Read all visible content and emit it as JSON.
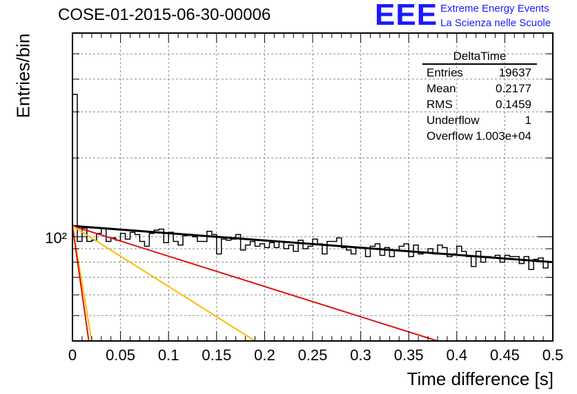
{
  "title": "COSE-01-2015-06-30-00006",
  "logo": {
    "mark": "EEE",
    "line1": "Extreme Energy Events",
    "line2": "La Scienza nelle Scuole",
    "color": "#1a1aff"
  },
  "stats": {
    "name": "DeltaTime",
    "rows": [
      {
        "key": "Entries",
        "value": "19637"
      },
      {
        "key": "Mean",
        "value": "0.2177"
      },
      {
        "key": "RMS",
        "value": "0.1459"
      },
      {
        "key": "Underflow",
        "value": "1"
      },
      {
        "key": "Overflow",
        "value": "1.003e+04"
      }
    ]
  },
  "chart_data": {
    "type": "histogram",
    "title": "COSE-01-2015-06-30-00006",
    "xlabel": "Time difference [s]",
    "ylabel": "Entries/bin",
    "xlim": [
      0,
      0.5
    ],
    "ylim": [
      40,
      600
    ],
    "yscale": "log",
    "grid": true,
    "x_ticks": [
      "0",
      "0.05",
      "0.1",
      "0.15",
      "0.2",
      "0.25",
      "0.3",
      "0.35",
      "0.4",
      "0.45",
      "0.5"
    ],
    "y_tick_labels": [
      "10²"
    ],
    "bin_width": 0.005,
    "bin_start": 0,
    "counts": [
      350,
      96,
      108,
      96,
      97,
      103,
      108,
      96,
      99,
      97,
      103,
      98,
      104,
      102,
      96,
      92,
      103,
      106,
      107,
      95,
      104,
      96,
      93,
      101,
      102,
      100,
      96,
      96,
      105,
      102,
      86,
      98,
      97,
      98,
      102,
      89,
      93,
      96,
      92,
      94,
      91,
      95,
      91,
      96,
      90,
      93,
      88,
      97,
      90,
      92,
      98,
      94,
      86,
      96,
      96,
      99,
      91,
      89,
      86,
      91,
      91,
      84,
      92,
      94,
      85,
      91,
      84,
      89,
      92,
      94,
      84,
      93,
      86,
      87,
      90,
      86,
      93,
      91,
      84,
      86,
      92,
      88,
      84,
      77,
      88,
      80,
      84,
      83,
      85,
      80,
      85,
      84,
      84,
      79,
      84,
      75,
      82,
      83,
      76,
      80
    ],
    "fit_lines": [
      {
        "color": "#000000",
        "points": [
          [
            0,
            110
          ],
          [
            0.5,
            80
          ]
        ]
      },
      {
        "color": "#dd1111",
        "points": [
          [
            0,
            110
          ],
          [
            0.38,
            40
          ]
        ]
      },
      {
        "color": "#ffbb00",
        "points": [
          [
            0,
            110
          ],
          [
            0.19,
            40
          ]
        ]
      },
      {
        "color": "#ffbb00",
        "points": [
          [
            0,
            110
          ],
          [
            0.02,
            40
          ]
        ]
      },
      {
        "color": "#dd1111",
        "points": [
          [
            0,
            110
          ],
          [
            0.017,
            40
          ]
        ]
      }
    ]
  }
}
